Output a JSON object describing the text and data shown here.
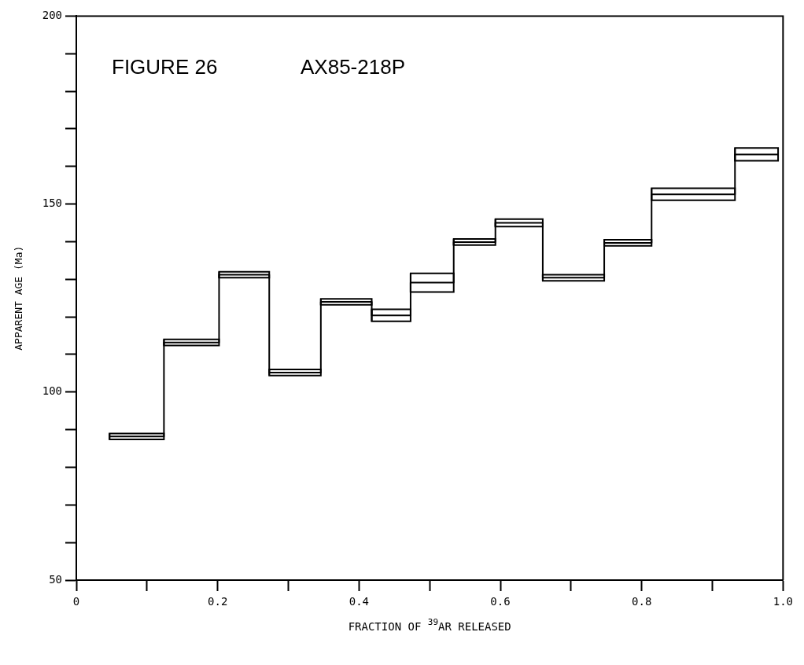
{
  "chart_data": {
    "type": "step",
    "title": "FIGURE 26",
    "subtitle": "AX85-218P",
    "xlabel": "FRACTION OF $^{39}$AR RELEASED",
    "ylabel": "APPARENT AGE (Ma)",
    "x": [
      0.047,
      0.124,
      0.202,
      0.273,
      0.346,
      0.418,
      0.473,
      0.534,
      0.593,
      0.66,
      0.747,
      0.814,
      0.932,
      0.993
    ],
    "series": [
      {
        "color": "#000000",
        "values": [
          88.2,
          113.2,
          131.2,
          105.2,
          124.0,
          120.4,
          129.1,
          139.9,
          145.0,
          130.4,
          139.7,
          152.6,
          163.2,
          163.2
        ],
        "errors": [
          0.8,
          0.8,
          0.8,
          0.8,
          0.8,
          1.6,
          2.5,
          0.8,
          1.0,
          0.8,
          0.8,
          1.6,
          1.7,
          null
        ]
      }
    ],
    "xlim": [
      0,
      1.0
    ],
    "ylim": [
      50,
      200
    ],
    "xticks": [
      0,
      {
        "value": 0.1,
        "label": null
      },
      0.2,
      {
        "value": 0.3,
        "label": null
      },
      0.4,
      {
        "value": 0.5,
        "label": null
      },
      0.6,
      {
        "value": 0.7,
        "label": null
      },
      0.8,
      {
        "value": 0.9,
        "label": null
      },
      {
        "value": 1.0,
        "label": "1.0"
      }
    ],
    "yticks": [
      50,
      {
        "value": 60,
        "label": null
      },
      {
        "value": 70,
        "label": null
      },
      {
        "value": 80,
        "label": null
      },
      {
        "value": 90,
        "label": null
      },
      100,
      {
        "value": 110,
        "label": null
      },
      {
        "value": 120,
        "label": null
      },
      {
        "value": 130,
        "label": null
      },
      {
        "value": 140,
        "label": null
      },
      150,
      {
        "value": 160,
        "label": null
      },
      {
        "value": 170,
        "label": null
      },
      {
        "value": 180,
        "label": null
      },
      {
        "value": 190,
        "label": null
      },
      200
    ],
    "marker": "none",
    "legend": false
  }
}
